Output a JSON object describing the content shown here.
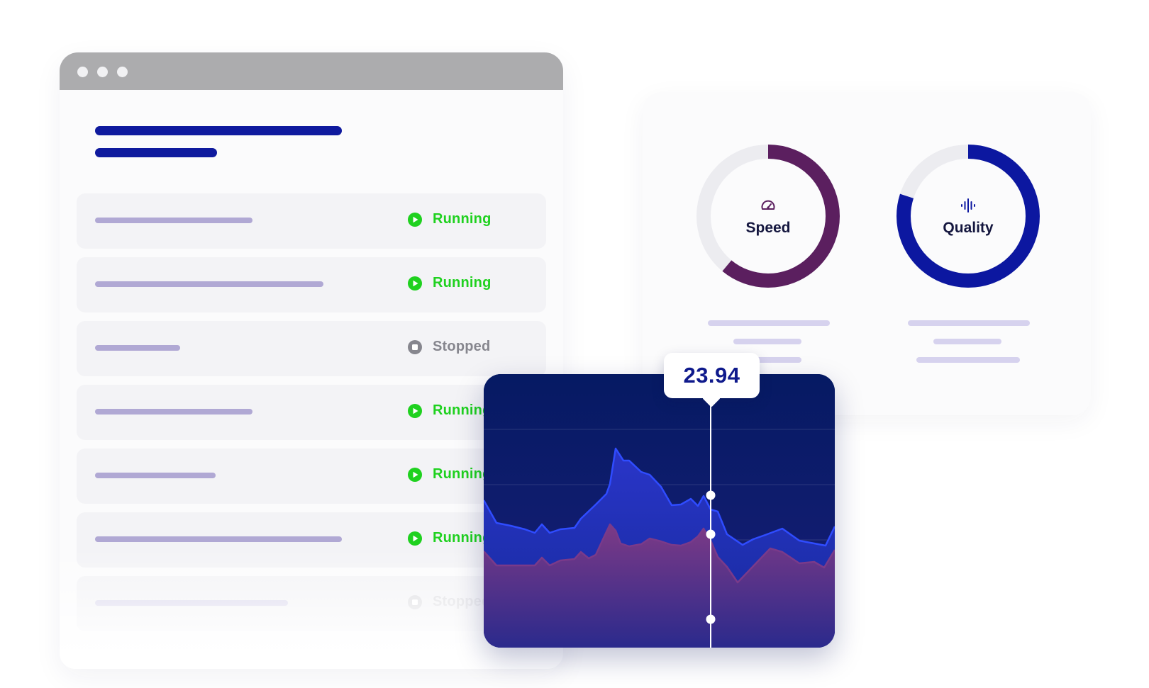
{
  "window": {
    "rows": [
      {
        "status": "Running",
        "state": "running"
      },
      {
        "status": "Running",
        "state": "running"
      },
      {
        "status": "Stopped",
        "state": "stopped"
      },
      {
        "status": "Running",
        "state": "running"
      },
      {
        "status": "Running",
        "state": "running"
      },
      {
        "status": "Running",
        "state": "running"
      },
      {
        "status": "Stopped",
        "state": "stopped"
      }
    ]
  },
  "metrics": {
    "speed": {
      "label": "Speed",
      "icon": "speedometer-icon",
      "color": "#5b1f5f",
      "fill": 0.61
    },
    "quality": {
      "label": "Quality",
      "icon": "audio-wave-icon",
      "color": "#0c17a0",
      "fill": 0.8
    }
  },
  "chart": {
    "tooltip_value": "23.94",
    "colors": {
      "background": "#061a63",
      "upper_series": "#2f4cff",
      "lower_series": "#7a3a8a",
      "running": "#1fd11f",
      "stopped": "#86868e"
    }
  }
}
